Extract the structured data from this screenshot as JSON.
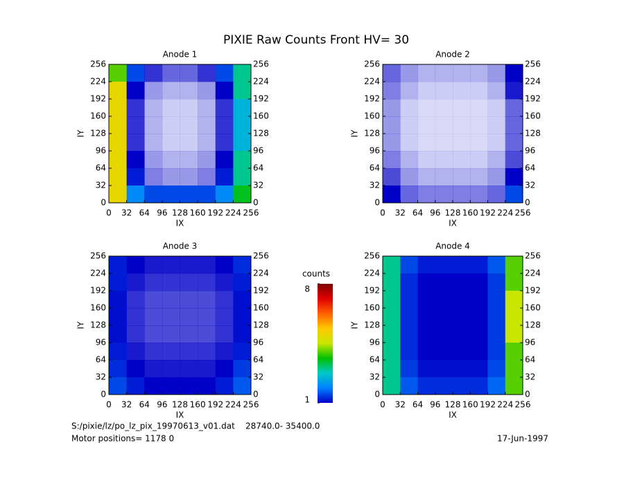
{
  "title": "PIXIE Raw Counts Front HV= 30",
  "footer": {
    "file": "S:/pixie/lz/po_lz_pix_19970613_v01.dat    28740.0- 35400.0",
    "motor": "Motor positions= 1178 0",
    "date": "17-Jun-1997"
  },
  "colorbar": {
    "label": "counts",
    "lim": [
      1,
      8
    ],
    "ticks": [
      1,
      8
    ],
    "colormap": [
      "#0000c8",
      "#0080ff",
      "#00c8c8",
      "#00c000",
      "#c8e600",
      "#ffc800",
      "#ff6000",
      "#e00000",
      "#800000"
    ]
  },
  "chart_data": [
    {
      "type": "heatmap",
      "title": "Anode 1",
      "xlabel": "IX",
      "ylabel": "IY",
      "xlim": [
        0,
        256
      ],
      "ylim": [
        0,
        256
      ],
      "xticks": [
        0,
        32,
        64,
        96,
        128,
        160,
        192,
        224,
        256
      ],
      "yticks": [
        0,
        32,
        64,
        96,
        128,
        160,
        192,
        224,
        256
      ],
      "z": [
        [
          4,
          1.5,
          0.8,
          0.6,
          0.6,
          0.8,
          1.5,
          3
        ],
        [
          5,
          1,
          0.4,
          0.3,
          0.3,
          0.4,
          1,
          3
        ],
        [
          5,
          0.8,
          0.3,
          0.2,
          0.2,
          0.3,
          0.8,
          2.5
        ],
        [
          5,
          0.8,
          0.3,
          0.2,
          0.2,
          0.3,
          0.8,
          2.5
        ],
        [
          5,
          0.8,
          0.3,
          0.2,
          0.2,
          0.3,
          0.8,
          2.5
        ],
        [
          5,
          1,
          0.4,
          0.3,
          0.3,
          0.4,
          1,
          3
        ],
        [
          5,
          1.2,
          0.5,
          0.4,
          0.4,
          0.5,
          1.2,
          3
        ],
        [
          5,
          2,
          1.5,
          1.5,
          1.5,
          1.5,
          2,
          3.5
        ]
      ]
    },
    {
      "type": "heatmap",
      "title": "Anode 2",
      "xlabel": "IX",
      "ylabel": "IY",
      "xlim": [
        0,
        256
      ],
      "ylim": [
        0,
        256
      ],
      "xticks": [
        0,
        32,
        64,
        96,
        128,
        160,
        192,
        224,
        256
      ],
      "yticks": [
        0,
        32,
        64,
        96,
        128,
        160,
        192,
        224,
        256
      ],
      "z": [
        [
          0.6,
          0.4,
          0.3,
          0.3,
          0.3,
          0.3,
          0.4,
          1
        ],
        [
          0.5,
          0.3,
          0.2,
          0.2,
          0.2,
          0.2,
          0.3,
          0.9
        ],
        [
          0.4,
          0.2,
          0.15,
          0.15,
          0.15,
          0.15,
          0.2,
          0.6
        ],
        [
          0.4,
          0.2,
          0.15,
          0.15,
          0.15,
          0.15,
          0.2,
          0.6
        ],
        [
          0.4,
          0.2,
          0.15,
          0.15,
          0.15,
          0.15,
          0.2,
          0.6
        ],
        [
          0.5,
          0.3,
          0.2,
          0.2,
          0.2,
          0.2,
          0.3,
          0.7
        ],
        [
          0.7,
          0.4,
          0.3,
          0.3,
          0.3,
          0.3,
          0.4,
          1
        ],
        [
          1,
          0.6,
          0.5,
          0.5,
          0.5,
          0.5,
          0.6,
          1.5
        ]
      ]
    },
    {
      "type": "heatmap",
      "title": "Anode 3",
      "xlabel": "IX",
      "ylabel": "IY",
      "xlim": [
        0,
        256
      ],
      "ylim": [
        0,
        256
      ],
      "xticks": [
        0,
        32,
        64,
        96,
        128,
        160,
        192,
        224,
        256
      ],
      "yticks": [
        0,
        32,
        64,
        96,
        128,
        160,
        192,
        224,
        256
      ],
      "z": [
        [
          1.2,
          1,
          0.9,
          0.9,
          0.9,
          0.9,
          1,
          1.3
        ],
        [
          1.2,
          0.9,
          0.8,
          0.8,
          0.8,
          0.8,
          0.9,
          1.2
        ],
        [
          1.1,
          0.8,
          0.7,
          0.7,
          0.7,
          0.7,
          0.8,
          1.1
        ],
        [
          1.1,
          0.8,
          0.7,
          0.7,
          0.7,
          0.7,
          0.8,
          1.1
        ],
        [
          1.1,
          0.8,
          0.7,
          0.7,
          0.7,
          0.7,
          0.8,
          1.1
        ],
        [
          1.2,
          0.9,
          0.8,
          0.8,
          0.8,
          0.8,
          0.9,
          1.2
        ],
        [
          1.3,
          1,
          0.9,
          0.9,
          0.9,
          0.9,
          1,
          1.4
        ],
        [
          1.5,
          1.2,
          1,
          1,
          1,
          1,
          1.2,
          1.6
        ]
      ]
    },
    {
      "type": "heatmap",
      "title": "Anode 4",
      "xlabel": "IX",
      "ylabel": "IY",
      "xlim": [
        0,
        256
      ],
      "ylim": [
        0,
        256
      ],
      "xticks": [
        0,
        32,
        64,
        96,
        128,
        160,
        192,
        224,
        256
      ],
      "yticks": [
        0,
        32,
        64,
        96,
        128,
        160,
        192,
        224,
        256
      ],
      "z": [
        [
          3,
          1.5,
          1.2,
          1.2,
          1.2,
          1.2,
          1.6,
          4
        ],
        [
          3,
          1.3,
          1,
          1,
          1,
          1,
          1.4,
          4
        ],
        [
          3,
          1.3,
          1,
          1,
          1,
          1,
          1.4,
          4.5
        ],
        [
          3,
          1.3,
          1,
          1,
          1,
          1,
          1.4,
          4.5
        ],
        [
          3,
          1.3,
          1,
          1,
          1,
          1,
          1.4,
          4.5
        ],
        [
          3,
          1.3,
          1,
          1,
          1,
          1,
          1.4,
          4
        ],
        [
          3,
          1.4,
          1.1,
          1.1,
          1.1,
          1.1,
          1.5,
          4
        ],
        [
          3,
          1.6,
          1.3,
          1.3,
          1.3,
          1.3,
          1.7,
          4
        ]
      ]
    }
  ]
}
